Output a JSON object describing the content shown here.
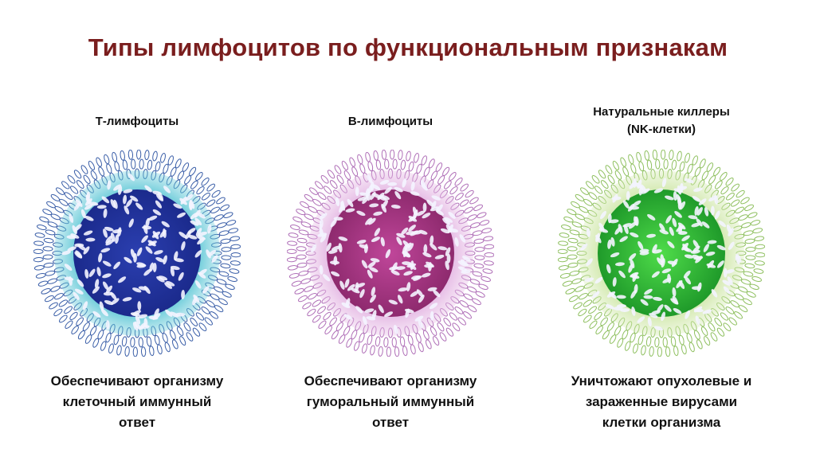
{
  "title": "Типы лимфоцитов по функциональным признакам",
  "cells": [
    {
      "heading": [
        "Т-лимфоциты"
      ],
      "description": [
        "Обеспечивают организму",
        "клеточный иммунный",
        "ответ"
      ],
      "halo_color": "#5ec7d6",
      "nucleus_color": "#1b2a8c",
      "nucleus_inner": "#2b3fb0",
      "spike_color": "#3b5fa8"
    },
    {
      "heading": [
        "В-лимфоциты"
      ],
      "description": [
        "Обеспечивают организму",
        "гуморальный иммунный",
        "ответ"
      ],
      "halo_color": "#e3b4e2",
      "nucleus_color": "#8e2a6e",
      "nucleus_inner": "#c0469a",
      "spike_color": "#b070b8"
    },
    {
      "heading": [
        "Натуральные киллеры",
        "(NK-клетки)"
      ],
      "description": [
        "Уничтожают опухолевые и",
        "зараженные вирусами",
        "клетки организма"
      ],
      "halo_color": "#cfe7a8",
      "nucleus_color": "#1f9a2a",
      "nucleus_inner": "#4fdc4a",
      "spike_color": "#8fc060"
    }
  ]
}
